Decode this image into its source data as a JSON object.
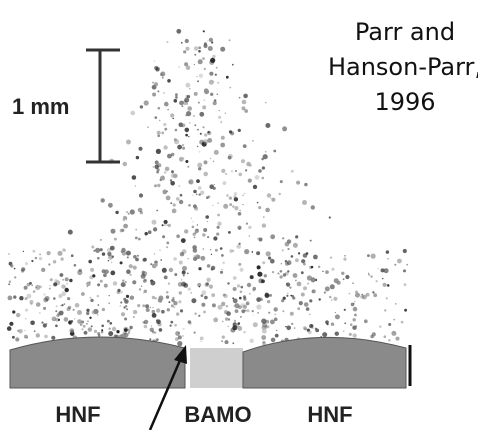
{
  "scale_bar": {
    "label": "1 mm"
  },
  "citation": {
    "lines": [
      "Parr and",
      "Hanson-Parr,",
      "1996"
    ]
  },
  "labels": [
    "HNF",
    "BAMO",
    "HNF"
  ]
}
